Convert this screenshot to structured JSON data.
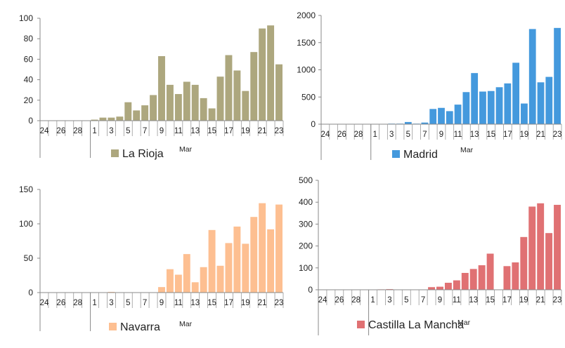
{
  "chart_data": [
    {
      "type": "bar",
      "x": [
        "24",
        "25",
        "26",
        "27",
        "28",
        "29",
        "1",
        "2",
        "3",
        "4",
        "5",
        "6",
        "7",
        "8",
        "9",
        "10",
        "11",
        "12",
        "13",
        "14",
        "15",
        "16",
        "17",
        "18",
        "19",
        "20",
        "21",
        "22",
        "23"
      ],
      "tick_labels": [
        "24",
        "26",
        "28",
        "1",
        "3",
        "5",
        "7",
        "9",
        "11",
        "13",
        "15",
        "17",
        "19",
        "21",
        "23"
      ],
      "month_label": "Mar",
      "series": [
        {
          "name": "La Rioja",
          "values": [
            0,
            0,
            0,
            0,
            0,
            0,
            1,
            3,
            3,
            4,
            18,
            10,
            15,
            25,
            63,
            35,
            26,
            38,
            35,
            22,
            12,
            43,
            64,
            49,
            29,
            67,
            90,
            93,
            55
          ]
        }
      ],
      "ylim": [
        0,
        100
      ],
      "yticks": [
        0,
        20,
        40,
        60,
        80,
        100
      ],
      "color": "#ADA77E",
      "legend_position": "bottom-center"
    },
    {
      "type": "bar",
      "x": [
        "24",
        "25",
        "26",
        "27",
        "28",
        "29",
        "1",
        "2",
        "3",
        "4",
        "5",
        "6",
        "7",
        "8",
        "9",
        "10",
        "11",
        "12",
        "13",
        "14",
        "15",
        "16",
        "17",
        "18",
        "19",
        "20",
        "21",
        "22",
        "23"
      ],
      "tick_labels": [
        "24",
        "26",
        "28",
        "1",
        "3",
        "5",
        "7",
        "9",
        "11",
        "13",
        "15",
        "17",
        "19",
        "21",
        "23"
      ],
      "month_label": "Mar",
      "series": [
        {
          "name": "Madrid",
          "values": [
            0,
            0,
            0,
            0,
            0,
            0,
            5,
            5,
            10,
            10,
            40,
            10,
            30,
            280,
            300,
            240,
            360,
            590,
            940,
            600,
            610,
            680,
            750,
            1130,
            380,
            1750,
            770,
            870,
            1770
          ]
        }
      ],
      "ylim": [
        0,
        2000
      ],
      "yticks": [
        0,
        500,
        1000,
        1500,
        2000
      ],
      "color": "#4499DD",
      "legend_position": "bottom-center"
    },
    {
      "type": "bar",
      "x": [
        "24",
        "25",
        "26",
        "27",
        "28",
        "29",
        "1",
        "2",
        "3",
        "4",
        "5",
        "6",
        "7",
        "8",
        "9",
        "10",
        "11",
        "12",
        "13",
        "14",
        "15",
        "16",
        "17",
        "18",
        "19",
        "20",
        "21",
        "22",
        "23"
      ],
      "tick_labels": [
        "24",
        "26",
        "28",
        "1",
        "3",
        "5",
        "7",
        "9",
        "11",
        "13",
        "15",
        "17",
        "19",
        "21",
        "23"
      ],
      "month_label": "Mar",
      "series": [
        {
          "name": "Navarra",
          "values": [
            0,
            0,
            0,
            0,
            0,
            0,
            0,
            0,
            1,
            0,
            0,
            0,
            0,
            0,
            8,
            34,
            26,
            56,
            15,
            37,
            91,
            39,
            72,
            96,
            71,
            110,
            130,
            92,
            128
          ]
        }
      ],
      "ylim": [
        0,
        150
      ],
      "yticks": [
        0,
        50,
        100,
        150
      ],
      "color": "#FDBF91",
      "legend_position": "bottom-center"
    },
    {
      "type": "bar",
      "x": [
        "24",
        "25",
        "26",
        "27",
        "28",
        "29",
        "1",
        "2",
        "3",
        "4",
        "5",
        "6",
        "7",
        "8",
        "9",
        "10",
        "11",
        "12",
        "13",
        "14",
        "15",
        "16",
        "17",
        "18",
        "19",
        "20",
        "21",
        "22",
        "23"
      ],
      "tick_labels": [
        "24",
        "26",
        "28",
        "1",
        "3",
        "5",
        "7",
        "9",
        "11",
        "13",
        "15",
        "17",
        "19",
        "21",
        "23"
      ],
      "month_label": "Mar",
      "series": [
        {
          "name": "Castilla La Mancha",
          "values": [
            0,
            0,
            0,
            0,
            0,
            0,
            0,
            2,
            3,
            0,
            0,
            0,
            0,
            12,
            14,
            32,
            43,
            77,
            95,
            112,
            165,
            0,
            108,
            125,
            241,
            380,
            395,
            259,
            388
          ]
        }
      ],
      "ylim": [
        0,
        500
      ],
      "yticks": [
        0,
        100,
        200,
        300,
        400,
        500
      ],
      "color": "#E07173",
      "legend_position": "bottom-center"
    }
  ]
}
